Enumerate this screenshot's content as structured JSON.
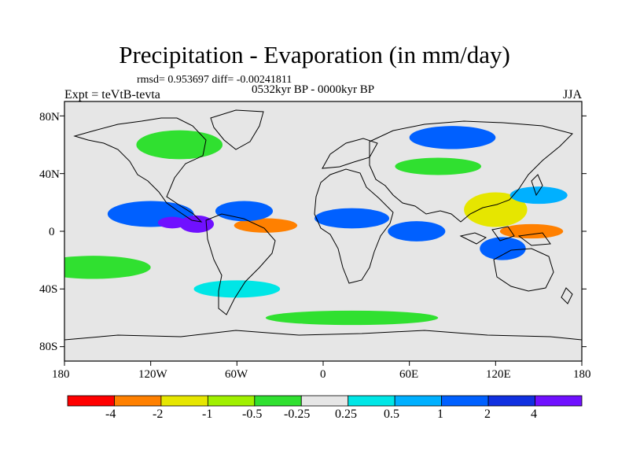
{
  "title": "Precipitation - Evaporation (in mm/day)",
  "stats_line": "rmsd= 0.953697 diff= -0.00241811",
  "period": "0532kyr BP - 0000kyr BP",
  "experiment": "Expt = teVtB-tevta",
  "season": "JJA",
  "axes": {
    "lat_labels": [
      "80N",
      "40N",
      "0",
      "40S",
      "80S"
    ],
    "lon_labels": [
      "180",
      "120W",
      "60W",
      "0",
      "60E",
      "120E",
      "180"
    ]
  },
  "colorbar": {
    "colors": [
      "#ff0000",
      "#ff8000",
      "#e6e600",
      "#a0f000",
      "#30e030",
      "#e6e6e6",
      "#00e6e6",
      "#00b0ff",
      "#0060ff",
      "#1030e0",
      "#7010ff"
    ],
    "labels": [
      "-4",
      "-2",
      "-1",
      "-0.5",
      "-0.25",
      "0.25",
      "0.5",
      "1",
      "2",
      "4"
    ]
  },
  "chart_data": {
    "type": "heatmap",
    "title": "Precipitation - Evaporation (in mm/day)",
    "lat_range": [
      -90,
      90
    ],
    "lon_range": [
      -180,
      180
    ],
    "levels": [
      -4,
      -2,
      -1,
      -0.5,
      -0.25,
      0.25,
      0.5,
      1,
      2,
      4
    ],
    "features": [
      {
        "lon": -120,
        "lat": 12,
        "rx": 30,
        "ry": 9,
        "value": 1.5
      },
      {
        "lon": -88,
        "lat": 5,
        "rx": 12,
        "ry": 6,
        "value": 4.5
      },
      {
        "lon": -105,
        "lat": 6,
        "rx": 10,
        "ry": 4,
        "value": 4.5
      },
      {
        "lon": -40,
        "lat": 4,
        "rx": 22,
        "ry": 5,
        "value": -2.5
      },
      {
        "lon": -55,
        "lat": 14,
        "rx": 20,
        "ry": 7,
        "value": 1.5
      },
      {
        "lon": 20,
        "lat": 9,
        "rx": 26,
        "ry": 7,
        "value": 1.5
      },
      {
        "lon": 65,
        "lat": 0,
        "rx": 20,
        "ry": 7,
        "value": 1.5
      },
      {
        "lon": 120,
        "lat": 15,
        "rx": 22,
        "ry": 12,
        "value": -1.5
      },
      {
        "lon": 145,
        "lat": 0,
        "rx": 22,
        "ry": 5,
        "value": -3.5
      },
      {
        "lon": 125,
        "lat": -12,
        "rx": 16,
        "ry": 8,
        "value": 1.5
      },
      {
        "lon": 150,
        "lat": 25,
        "rx": 20,
        "ry": 6,
        "value": 0.8
      },
      {
        "lon": -160,
        "lat": -25,
        "rx": 40,
        "ry": 8,
        "value": -0.4
      },
      {
        "lon": -60,
        "lat": -40,
        "rx": 30,
        "ry": 6,
        "value": 0.4
      },
      {
        "lon": 20,
        "lat": -60,
        "rx": 60,
        "ry": 5,
        "value": -0.4
      },
      {
        "lon": -100,
        "lat": 60,
        "rx": 30,
        "ry": 10,
        "value": -0.4
      },
      {
        "lon": 90,
        "lat": 65,
        "rx": 30,
        "ry": 8,
        "value": 1.2
      },
      {
        "lon": 80,
        "lat": 45,
        "rx": 30,
        "ry": 6,
        "value": -0.4
      }
    ]
  }
}
